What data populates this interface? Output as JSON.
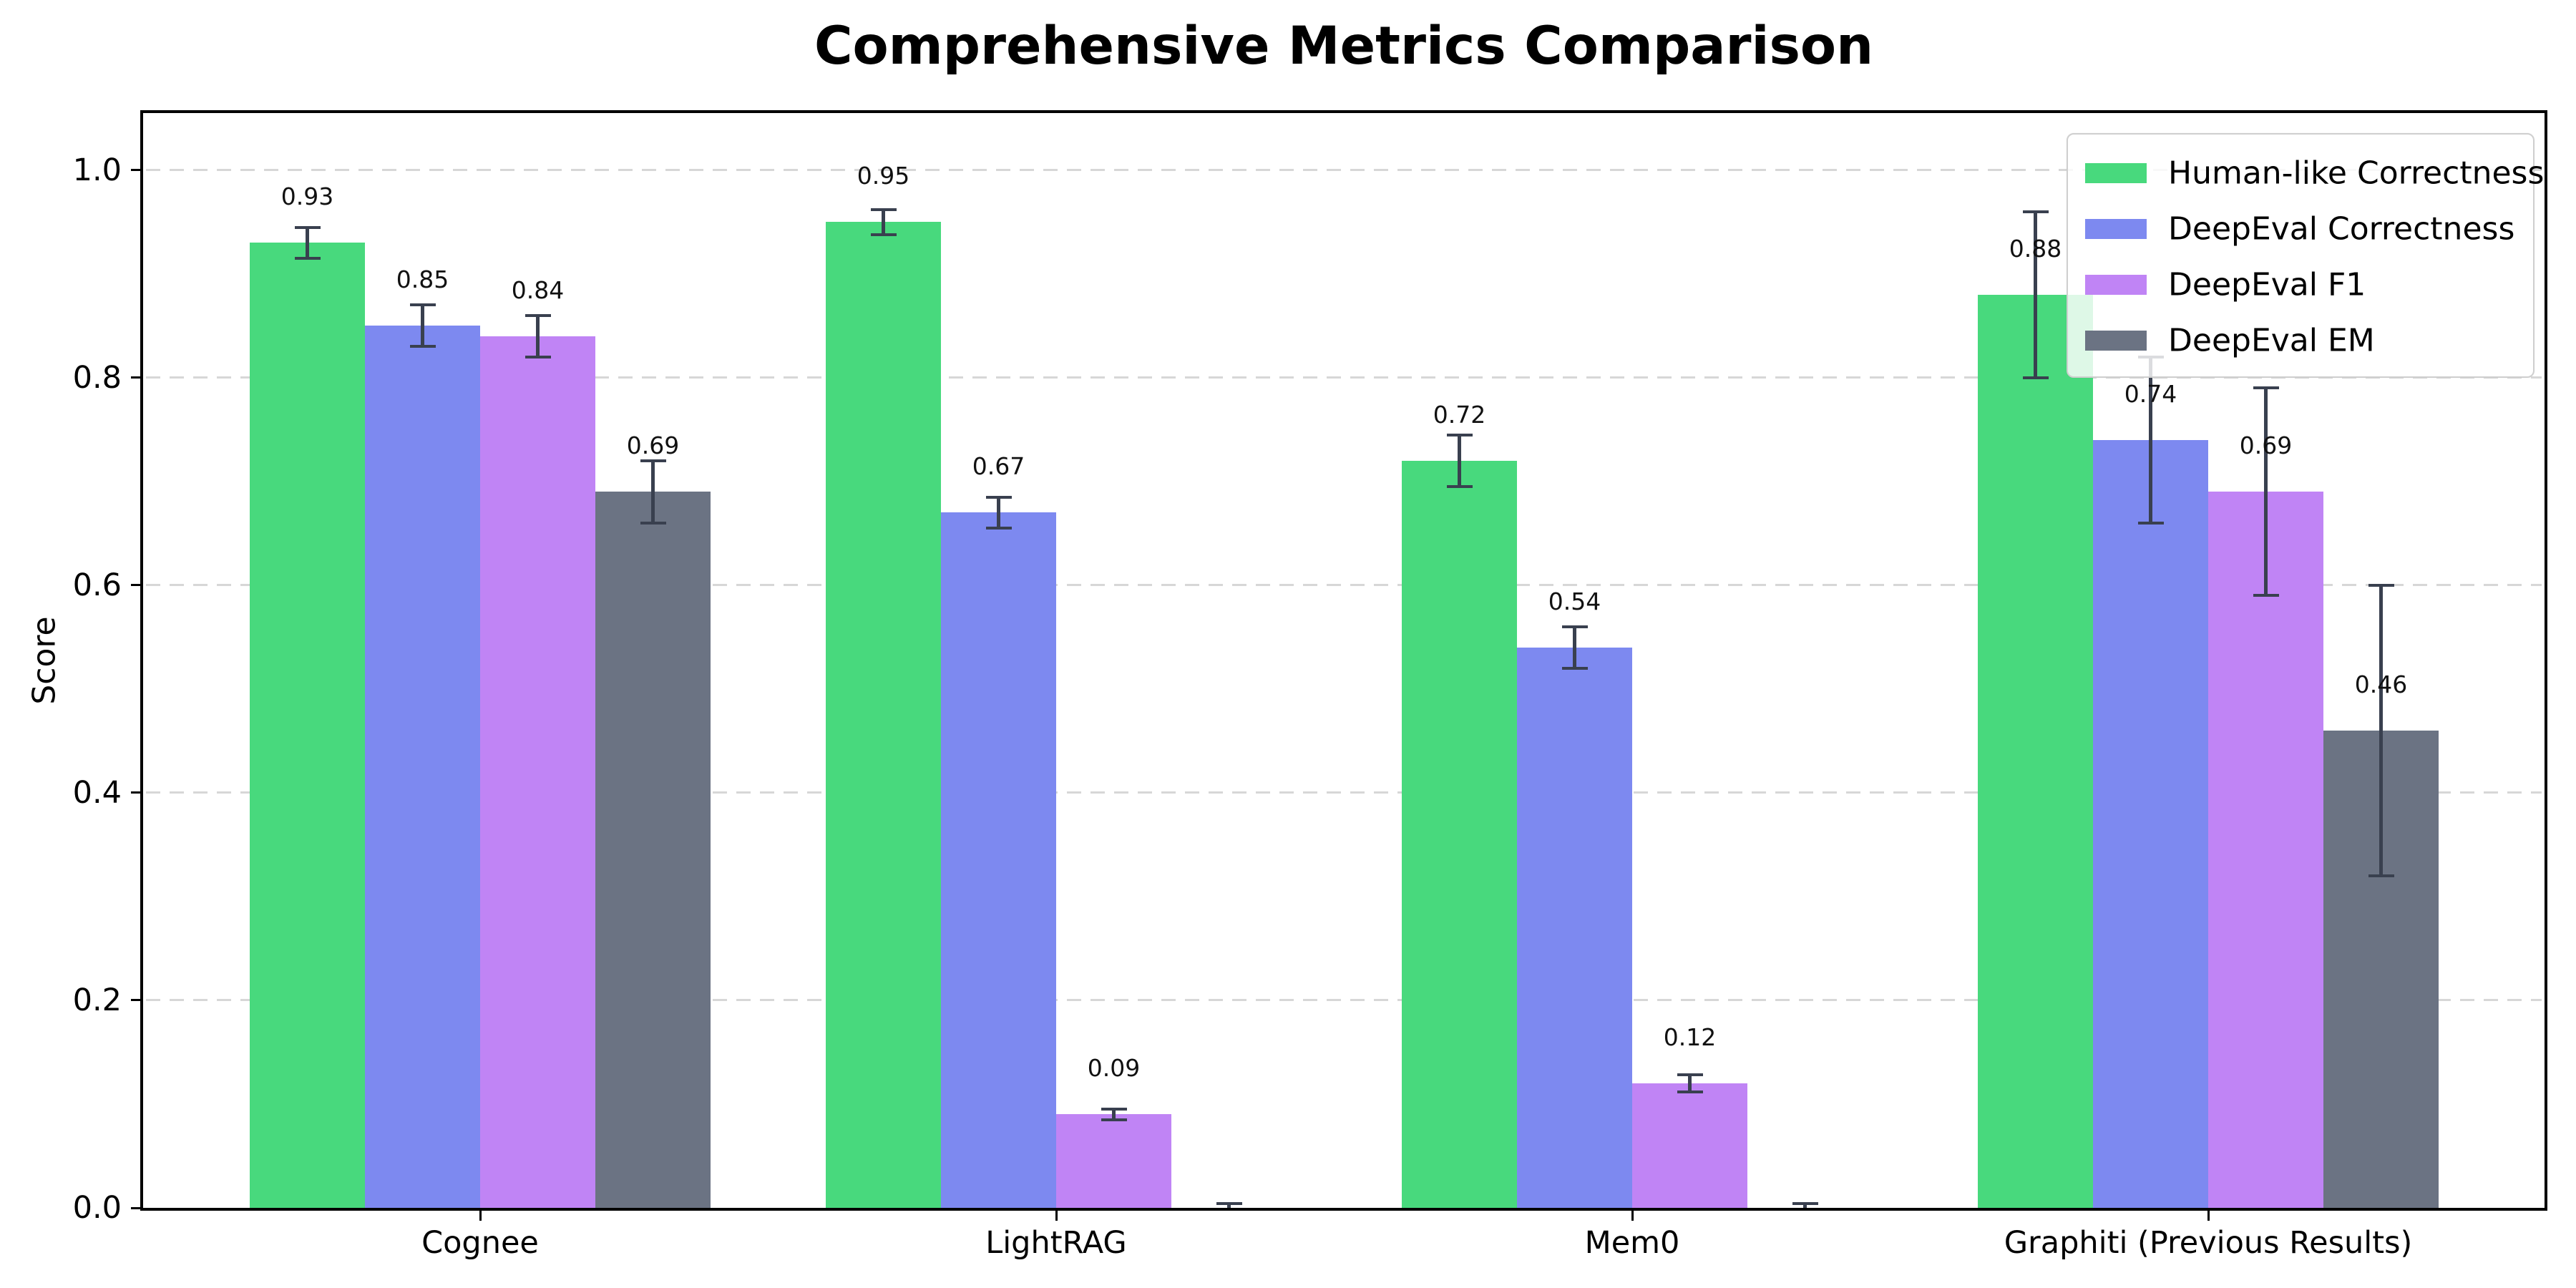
{
  "chart_data": {
    "type": "bar",
    "title": "Comprehensive Metrics Comparison",
    "xlabel": "",
    "ylabel": "Score",
    "categories": [
      "Cognee",
      "LightRAG",
      "Mem0",
      "Graphiti (Previous Results)"
    ],
    "series": [
      {
        "name": "Human-like Correctness",
        "color": "#48d97d",
        "values": [
          0.93,
          0.95,
          0.72,
          0.88
        ],
        "errors": [
          0.015,
          0.012,
          0.025,
          0.08
        ]
      },
      {
        "name": "DeepEval Correctness",
        "color": "#7d89f0",
        "values": [
          0.85,
          0.67,
          0.54,
          0.74
        ],
        "errors": [
          0.02,
          0.015,
          0.02,
          0.08
        ]
      },
      {
        "name": "DeepEval F1",
        "color": "#c084f5",
        "values": [
          0.84,
          0.09,
          0.12,
          0.69
        ],
        "errors": [
          0.02,
          0.005,
          0.008,
          0.1
        ]
      },
      {
        "name": "DeepEval EM",
        "color": "#6b7383",
        "values": [
          0.69,
          0.0,
          0.0,
          0.46
        ],
        "errors": [
          0.03,
          0.004,
          0.004,
          0.14
        ]
      }
    ],
    "bar_value_labels": [
      "0.93",
      "0.85",
      "0.84",
      "0.69",
      "0.95",
      "0.67",
      "0.09",
      "0.72",
      "0.54",
      "0.12",
      "0.88",
      "0.74",
      "0.69",
      "0.46"
    ],
    "yticks": [
      0.0,
      0.2,
      0.4,
      0.6,
      0.8,
      1.0
    ],
    "ylim": [
      0,
      1.055
    ],
    "grid": "horizontal-dashed",
    "grid_color": "#d7d7d7",
    "error_bar_color": "#39404f",
    "legend_position": "upper right",
    "background_color": "#ffffff",
    "axis_color": "#000000"
  }
}
